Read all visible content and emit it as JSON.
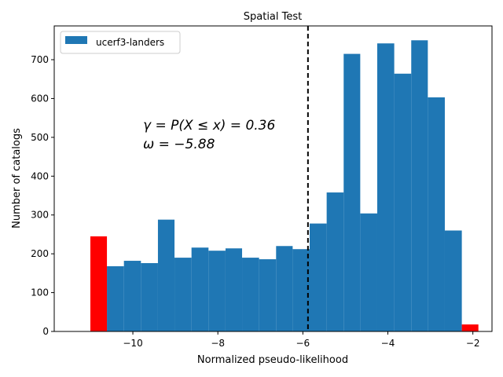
{
  "chart_data": {
    "type": "bar",
    "title": "Spatial Test",
    "xlabel": "Normalized pseudo-likelihood",
    "ylabel": "Number of catalogs",
    "xlim": [
      -11.85,
      -1.55
    ],
    "ylim": [
      0,
      787
    ],
    "xticks": [
      -10,
      -8,
      -6,
      -4,
      -2
    ],
    "xtick_labels": [
      "−10",
      "−8",
      "−6",
      "−4",
      "−2"
    ],
    "yticks": [
      0,
      100,
      200,
      300,
      400,
      500,
      600,
      700
    ],
    "ytick_labels": [
      "0",
      "100",
      "200",
      "300",
      "400",
      "500",
      "600",
      "700"
    ],
    "grid": false,
    "legend": {
      "position": "top-left",
      "entries": [
        "ucerf3-landers"
      ]
    },
    "series": [
      {
        "name": "ucerf3-landers",
        "color": "#1f77b4",
        "bins": [
          {
            "x0": -10.61,
            "x1": -10.21,
            "count": 168
          },
          {
            "x0": -10.21,
            "x1": -9.81,
            "count": 182
          },
          {
            "x0": -9.81,
            "x1": -9.41,
            "count": 176
          },
          {
            "x0": -9.41,
            "x1": -9.02,
            "count": 288
          },
          {
            "x0": -9.02,
            "x1": -8.62,
            "count": 190
          },
          {
            "x0": -8.62,
            "x1": -8.22,
            "count": 216
          },
          {
            "x0": -8.22,
            "x1": -7.82,
            "count": 208
          },
          {
            "x0": -7.82,
            "x1": -7.43,
            "count": 214
          },
          {
            "x0": -7.43,
            "x1": -7.03,
            "count": 190
          },
          {
            "x0": -7.03,
            "x1": -6.63,
            "count": 186
          },
          {
            "x0": -6.63,
            "x1": -6.24,
            "count": 220
          },
          {
            "x0": -6.24,
            "x1": -5.84,
            "count": 212
          },
          {
            "x0": -5.84,
            "x1": -5.44,
            "count": 278
          },
          {
            "x0": -5.44,
            "x1": -5.04,
            "count": 358
          },
          {
            "x0": -5.04,
            "x1": -4.65,
            "count": 715
          },
          {
            "x0": -4.65,
            "x1": -4.25,
            "count": 304
          },
          {
            "x0": -4.25,
            "x1": -3.85,
            "count": 742
          },
          {
            "x0": -3.85,
            "x1": -3.45,
            "count": 664
          },
          {
            "x0": -3.45,
            "x1": -3.06,
            "count": 750
          },
          {
            "x0": -3.06,
            "x1": -2.66,
            "count": 603
          },
          {
            "x0": -2.66,
            "x1": -2.26,
            "count": 260
          }
        ]
      },
      {
        "color": "#ff0000",
        "bins": [
          {
            "x0": -11.0,
            "x1": -10.61,
            "count": 245
          },
          {
            "x0": -2.26,
            "x1": -1.87,
            "count": 18
          }
        ]
      }
    ],
    "observed_line": {
      "x": -5.88,
      "style": "dashed",
      "color": "#000000"
    },
    "annotations": [
      "γ = P(X ≤ x) = 0.36",
      "ω = −5.88"
    ]
  }
}
